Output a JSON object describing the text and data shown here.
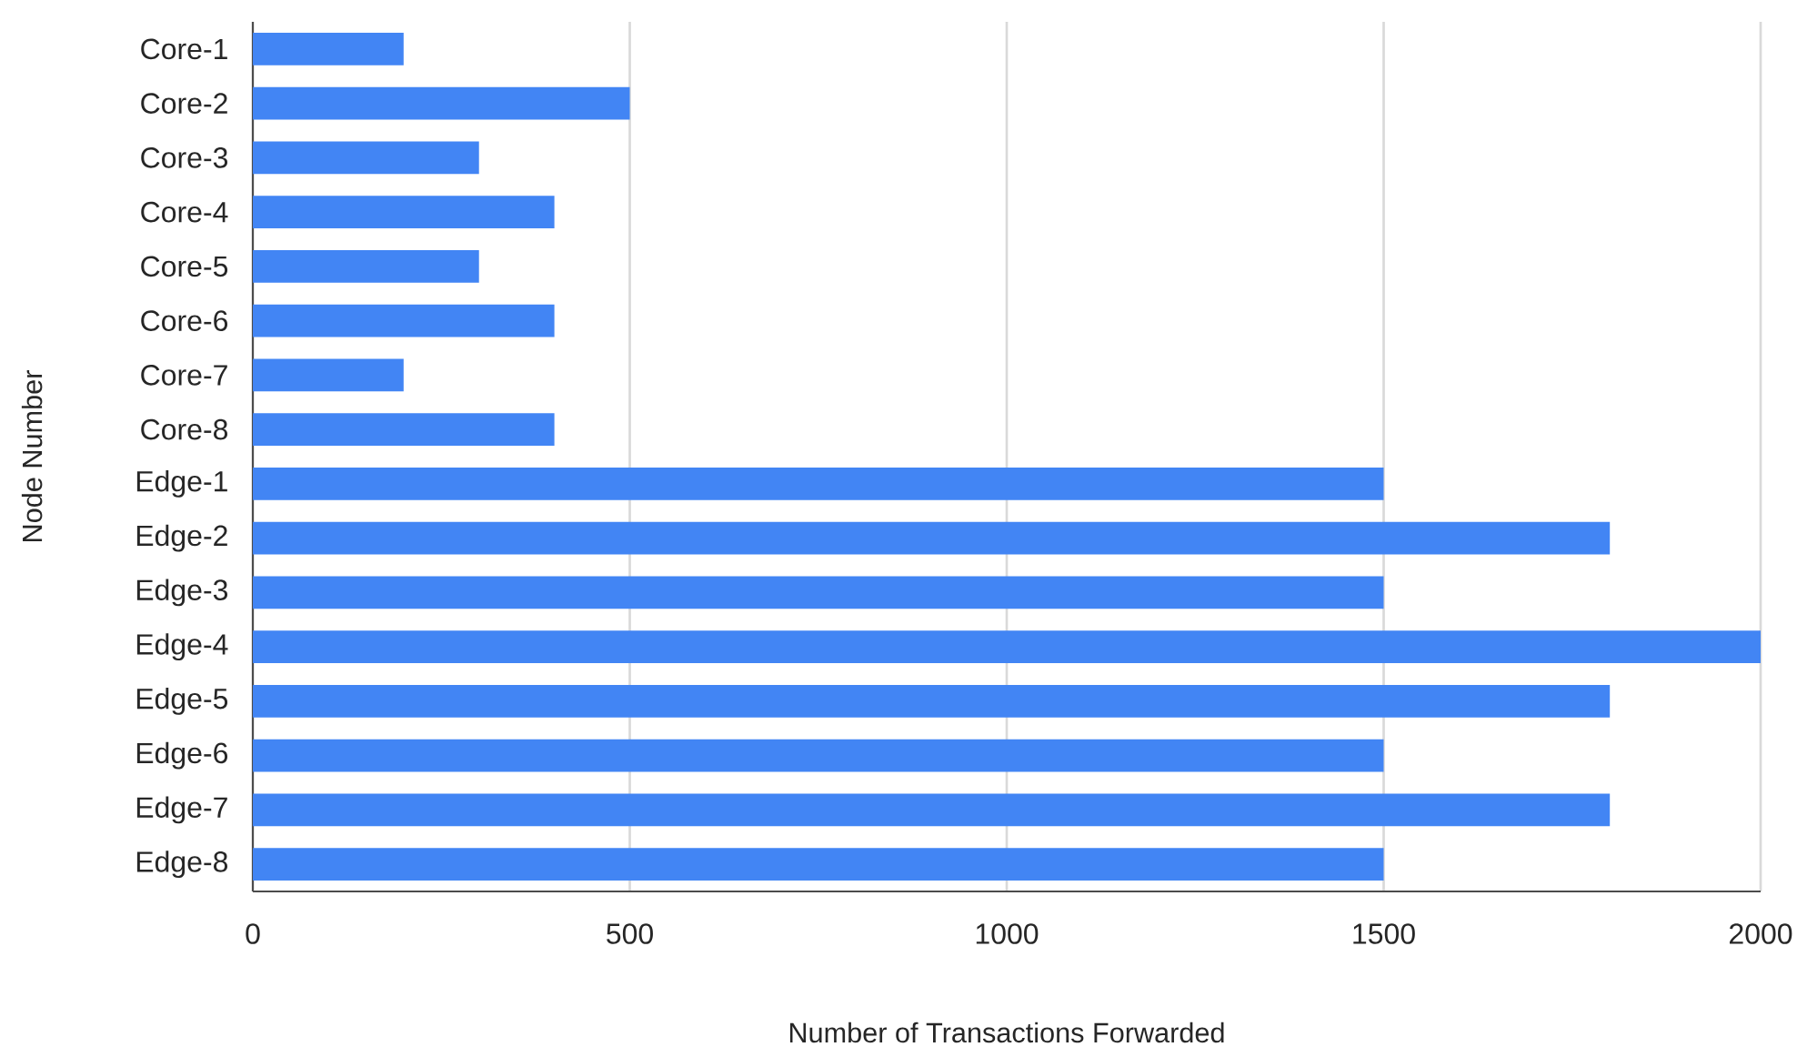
{
  "chart_data": {
    "type": "bar",
    "orientation": "horizontal",
    "xlabel": "Number of Transactions Forwarded",
    "ylabel": "Node Number",
    "categories": [
      "Core-1",
      "Core-2",
      "Core-3",
      "Core-4",
      "Core-5",
      "Core-6",
      "Core-7",
      "Core-8",
      "Edge-1",
      "Edge-2",
      "Edge-3",
      "Edge-4",
      "Edge-5",
      "Edge-6",
      "Edge-7",
      "Edge-8"
    ],
    "values": [
      200,
      500,
      300,
      400,
      300,
      400,
      200,
      400,
      1500,
      1800,
      1500,
      2000,
      1800,
      1500,
      1800,
      1500
    ],
    "color": "#4285f4",
    "xlim": [
      0,
      2000
    ],
    "xticks": [
      0,
      500,
      1000,
      1500,
      2000
    ],
    "grid": "x"
  }
}
